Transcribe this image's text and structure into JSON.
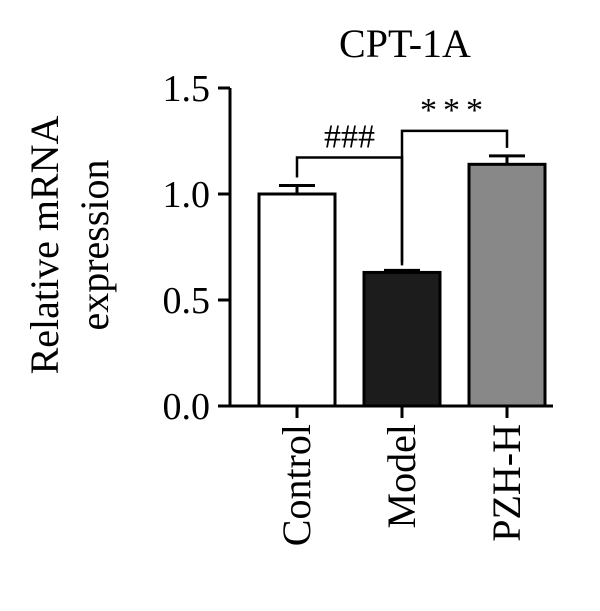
{
  "chart_data": {
    "type": "bar",
    "title": "CPT-1A",
    "ylabel_lines": [
      "Relative mRNA",
      "expression"
    ],
    "xlabel": "",
    "categories": [
      "Control",
      "Model",
      "PZH-H"
    ],
    "values": [
      1.0,
      0.63,
      1.14
    ],
    "errors": [
      0.04,
      0.01,
      0.04
    ],
    "bar_colors": [
      "#ffffff",
      "#1c1c1c",
      "#888888"
    ],
    "ylim": [
      0,
      1.5
    ],
    "yticks": [
      0.0,
      0.5,
      1.0,
      1.5
    ],
    "ytick_labels": [
      "0.0",
      "0.5",
      "1.0",
      "1.5"
    ],
    "grid": false,
    "significance": [
      {
        "from": "Control",
        "to": "Model",
        "label": "###"
      },
      {
        "from": "Model",
        "to": "PZH-H",
        "label": "***"
      }
    ]
  }
}
